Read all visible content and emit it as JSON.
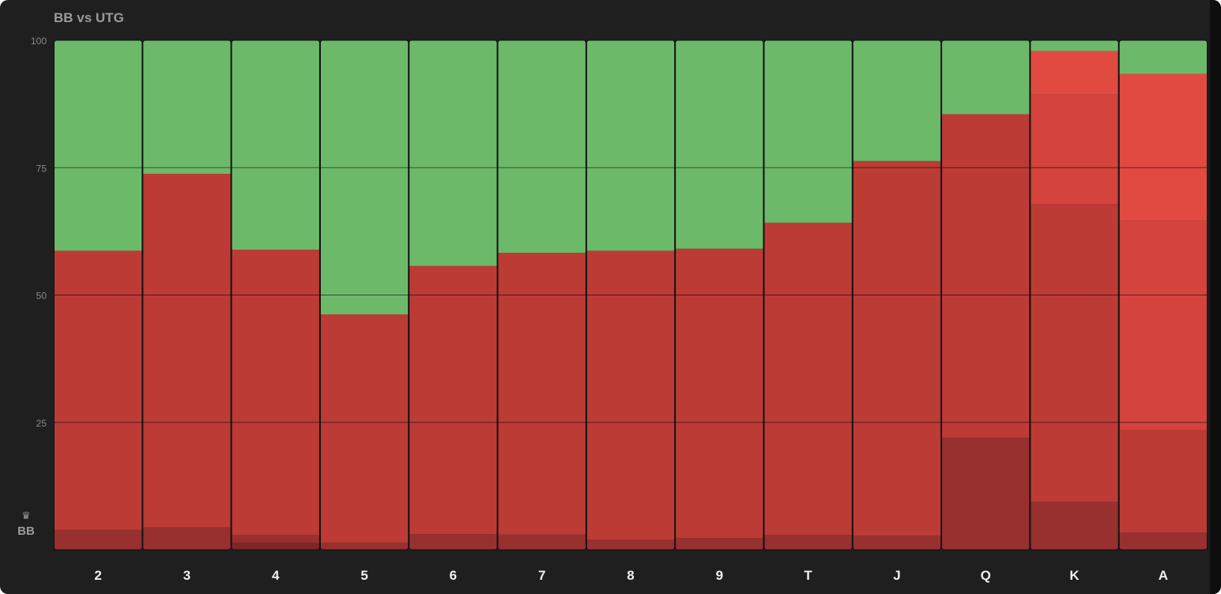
{
  "header": {
    "title": "BB vs UTG"
  },
  "player": {
    "icon": "crown-icon",
    "label": "BB"
  },
  "colors": {
    "fold": "#6cb96a",
    "call": "#bd3b35",
    "raise_small": "#983030",
    "raise_mid": "#d4433c",
    "raise_large": "#e04a41",
    "raise_xs": "#7d2626",
    "grid": "#000000",
    "axis_text": "#8a8a8a",
    "category_text": "#f0f0f0"
  },
  "chart_data": {
    "type": "bar",
    "stacked": true,
    "title": "BB vs UTG",
    "xlabel": "",
    "ylabel": "",
    "ylim": [
      0,
      100
    ],
    "yticks": [
      25,
      50,
      75,
      100
    ],
    "grid": true,
    "categories": [
      "2",
      "3",
      "4",
      "5",
      "6",
      "7",
      "8",
      "9",
      "T",
      "J",
      "Q",
      "K",
      "A"
    ],
    "segments": [
      [
        {
          "color": "raise_small",
          "value": 3.9
        },
        {
          "color": "call",
          "value": 54.8
        },
        {
          "color": "fold",
          "value": 41.3
        }
      ],
      [
        {
          "color": "raise_small",
          "value": 4.4
        },
        {
          "color": "call",
          "value": 69.4
        },
        {
          "color": "fold",
          "value": 26.2
        }
      ],
      [
        {
          "color": "raise_xs",
          "value": 1.4
        },
        {
          "color": "raise_small",
          "value": 1.5
        },
        {
          "color": "call",
          "value": 56.0
        },
        {
          "color": "fold",
          "value": 41.1
        }
      ],
      [
        {
          "color": "raise_small",
          "value": 1.4
        },
        {
          "color": "call",
          "value": 44.8
        },
        {
          "color": "fold",
          "value": 53.8
        }
      ],
      [
        {
          "color": "raise_small",
          "value": 3.1
        },
        {
          "color": "call",
          "value": 52.6
        },
        {
          "color": "fold",
          "value": 44.3
        }
      ],
      [
        {
          "color": "raise_small",
          "value": 3.0
        },
        {
          "color": "call",
          "value": 55.3
        },
        {
          "color": "fold",
          "value": 41.7
        }
      ],
      [
        {
          "color": "raise_small",
          "value": 2.0
        },
        {
          "color": "call",
          "value": 56.7
        },
        {
          "color": "fold",
          "value": 41.3
        }
      ],
      [
        {
          "color": "raise_small",
          "value": 2.3
        },
        {
          "color": "call",
          "value": 56.8
        },
        {
          "color": "fold",
          "value": 40.9
        }
      ],
      [
        {
          "color": "raise_small",
          "value": 2.9
        },
        {
          "color": "call",
          "value": 61.3
        },
        {
          "color": "fold",
          "value": 35.8
        }
      ],
      [
        {
          "color": "raise_small",
          "value": 2.8
        },
        {
          "color": "call",
          "value": 73.5
        },
        {
          "color": "fold",
          "value": 23.7
        }
      ],
      [
        {
          "color": "raise_small",
          "value": 22.0
        },
        {
          "color": "call",
          "value": 63.5
        },
        {
          "color": "fold",
          "value": 14.5
        }
      ],
      [
        {
          "color": "raise_small",
          "value": 9.4
        },
        {
          "color": "call",
          "value": 58.4
        },
        {
          "color": "raise_mid",
          "value": 21.6
        },
        {
          "color": "raise_large",
          "value": 8.5
        },
        {
          "color": "fold",
          "value": 2.1
        }
      ],
      [
        {
          "color": "raise_small",
          "value": 3.4
        },
        {
          "color": "call",
          "value": 20.1
        },
        {
          "color": "raise_mid",
          "value": 41.1
        },
        {
          "color": "raise_large",
          "value": 28.8
        },
        {
          "color": "fold",
          "value": 6.6
        }
      ]
    ]
  }
}
